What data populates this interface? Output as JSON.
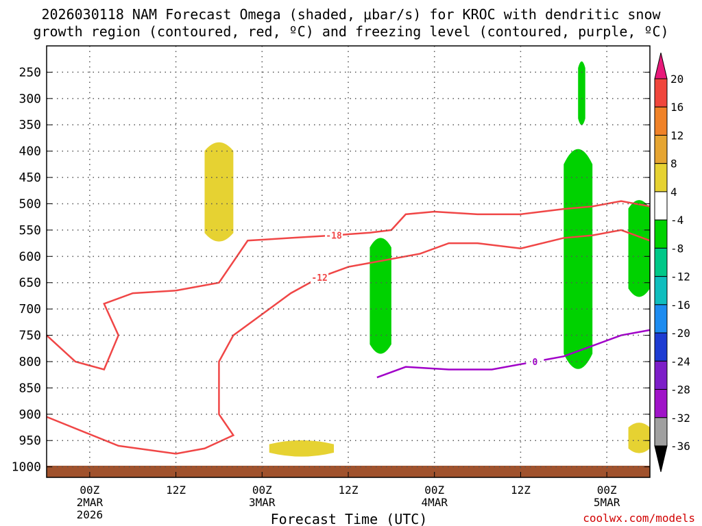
{
  "title_line1": "2026030118 NAM Forecast Omega (shaded, μbar/s) for KROC with dendritic snow",
  "title_line2": "growth region (contoured, red, ºC) and freezing level (contoured, purple, ºC)",
  "xlabel": "Forecast Time (UTC)",
  "watermark": "coolwx.com/models",
  "x_ticks": [
    {
      "hours": 6,
      "label": "00Z",
      "sub1": "2MAR",
      "sub2": "2026"
    },
    {
      "hours": 18,
      "label": "12Z",
      "sub1": "",
      "sub2": ""
    },
    {
      "hours": 30,
      "label": "00Z",
      "sub1": "3MAR",
      "sub2": ""
    },
    {
      "hours": 42,
      "label": "12Z",
      "sub1": "",
      "sub2": ""
    },
    {
      "hours": 54,
      "label": "00Z",
      "sub1": "4MAR",
      "sub2": ""
    },
    {
      "hours": 66,
      "label": "12Z",
      "sub1": "",
      "sub2": ""
    },
    {
      "hours": 78,
      "label": "00Z",
      "sub1": "5MAR",
      "sub2": ""
    }
  ],
  "colorbar": [
    {
      "label": "20",
      "color": "#e8197a"
    },
    {
      "label": "16",
      "color": "#f0463c"
    },
    {
      "label": "12",
      "color": "#f08228"
    },
    {
      "label": "8",
      "color": "#e6a532"
    },
    {
      "label": "4",
      "color": "#e6d232"
    },
    {
      "label": "-4",
      "color": "#ffffff"
    },
    {
      "label": "-8",
      "color": "#00d200"
    },
    {
      "label": "-12",
      "color": "#00c888"
    },
    {
      "label": "-16",
      "color": "#10bebe"
    },
    {
      "label": "-20",
      "color": "#1e8cf0"
    },
    {
      "label": "-24",
      "color": "#1e3cd2"
    },
    {
      "label": "-28",
      "color": "#7d1ec8"
    },
    {
      "label": "-32",
      "color": "#a014c8"
    },
    {
      "label": "-36",
      "color": "#a0a0a0"
    }
  ],
  "chart_data": {
    "type": "time-height cross section",
    "x_range_hours": [
      0,
      84
    ],
    "y_levels_mb": [
      250,
      300,
      350,
      400,
      450,
      500,
      550,
      600,
      650,
      700,
      750,
      800,
      850,
      900,
      950,
      1000
    ],
    "y_range_mb": [
      200,
      1020
    ],
    "omega_shaded": [
      {
        "type": "upward",
        "color": "#e6d232",
        "start_hours": 22,
        "end_hours": 26,
        "top_mb": 380,
        "bottom_mb": 575
      },
      {
        "type": "upward",
        "color": "#e6d232",
        "start_hours": 31,
        "end_hours": 40,
        "top_mb": 955,
        "bottom_mb": 975
      },
      {
        "type": "downward",
        "color": "#00d200",
        "start_hours": 45,
        "end_hours": 48,
        "top_mb": 560,
        "bottom_mb": 790
      },
      {
        "type": "downward",
        "color": "#00d200",
        "start_hours": 72,
        "end_hours": 76,
        "top_mb": 380,
        "bottom_mb": 830
      },
      {
        "type": "downward",
        "color": "#00d200",
        "start_hours": 74,
        "end_hours": 75,
        "top_mb": 230,
        "bottom_mb": 350
      },
      {
        "type": "downward",
        "color": "#00d200",
        "start_hours": 81,
        "end_hours": 84,
        "top_mb": 490,
        "bottom_mb": 680
      },
      {
        "type": "upward",
        "color": "#e6d232",
        "start_hours": 81,
        "end_hours": 84,
        "top_mb": 920,
        "bottom_mb": 970
      }
    ],
    "isotherms": [
      {
        "label": "-18",
        "color": "#f04646",
        "points_hours_mb": [
          [
            0,
            750
          ],
          [
            4,
            800
          ],
          [
            8,
            815
          ],
          [
            10,
            750
          ],
          [
            8,
            690
          ],
          [
            12,
            670
          ],
          [
            18,
            665
          ],
          [
            24,
            650
          ],
          [
            28,
            570
          ],
          [
            34,
            565
          ],
          [
            40,
            560
          ],
          [
            45,
            555
          ],
          [
            48,
            550
          ],
          [
            50,
            520
          ],
          [
            54,
            515
          ],
          [
            60,
            520
          ],
          [
            66,
            520
          ],
          [
            72,
            510
          ],
          [
            76,
            505
          ],
          [
            80,
            495
          ],
          [
            84,
            505
          ]
        ]
      },
      {
        "label": "-12",
        "color": "#f04646",
        "points_hours_mb": [
          [
            0,
            905
          ],
          [
            10,
            960
          ],
          [
            18,
            975
          ],
          [
            22,
            965
          ],
          [
            26,
            940
          ],
          [
            24,
            900
          ],
          [
            24,
            800
          ],
          [
            26,
            750
          ],
          [
            30,
            710
          ],
          [
            34,
            670
          ],
          [
            38,
            640
          ],
          [
            42,
            620
          ],
          [
            46,
            610
          ],
          [
            52,
            595
          ],
          [
            56,
            575
          ],
          [
            60,
            575
          ],
          [
            66,
            585
          ],
          [
            72,
            565
          ],
          [
            76,
            560
          ],
          [
            80,
            550
          ],
          [
            84,
            570
          ]
        ]
      },
      {
        "label": "0",
        "color": "#a000c8",
        "points_hours_mb": [
          [
            46,
            830
          ],
          [
            50,
            810
          ],
          [
            56,
            815
          ],
          [
            62,
            815
          ],
          [
            68,
            800
          ],
          [
            72,
            790
          ],
          [
            76,
            770
          ],
          [
            80,
            750
          ],
          [
            84,
            740
          ]
        ]
      }
    ]
  }
}
